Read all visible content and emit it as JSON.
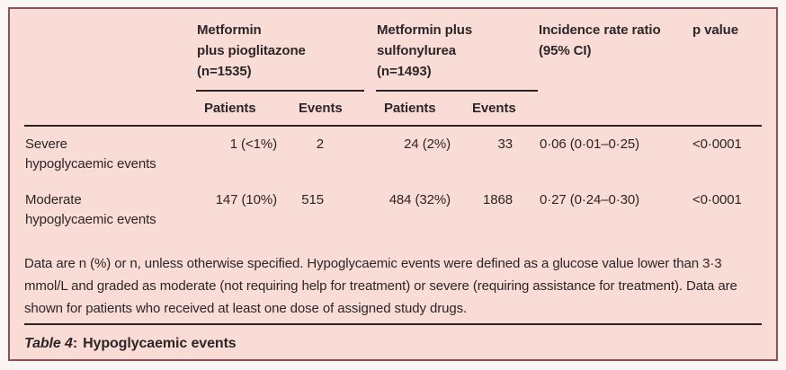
{
  "colors": {
    "page_bg": "#fbf6f4",
    "panel_bg": "#f8dcd5",
    "panel_border": "#8e5058",
    "rule": "#2a2224",
    "text": "#2d2528"
  },
  "table": {
    "column_groups": [
      {
        "title": "Metformin\nplus pioglitazone\n(n=1535)",
        "subcolumns": [
          "Patients",
          "Events"
        ]
      },
      {
        "title": "Metformin plus\nsulfonylurea\n(n=1493)",
        "subcolumns": [
          "Patients",
          "Events"
        ]
      }
    ],
    "columns": [
      {
        "title": "Incidence rate ratio\n(95% CI)"
      },
      {
        "title": "p value"
      }
    ],
    "rows": [
      {
        "label": "Severe\nhypoglycaemic events",
        "values": [
          "1 (<1%)",
          "2",
          "24 (2%)",
          "33",
          "0·06 (0·01–0·25)",
          "<0·0001"
        ]
      },
      {
        "label": "Moderate\nhypoglycaemic events",
        "values": [
          "147 (10%)",
          "515",
          "484 (32%)",
          "1868",
          "0·27 (0·24–0·30)",
          "<0·0001"
        ]
      }
    ],
    "footnote": "Data are n (%) or n, unless otherwise specified. Hypoglycaemic events were defined as a glucose value lower than 3·3 mmol/L and graded as moderate (not requiring help for treatment) or severe (requiring assistance for treatment). Data are shown for patients who received at least one dose of assigned study drugs.",
    "caption": {
      "label": "Table 4",
      "separator": ":",
      "title": "Hypoglycaemic events"
    }
  }
}
